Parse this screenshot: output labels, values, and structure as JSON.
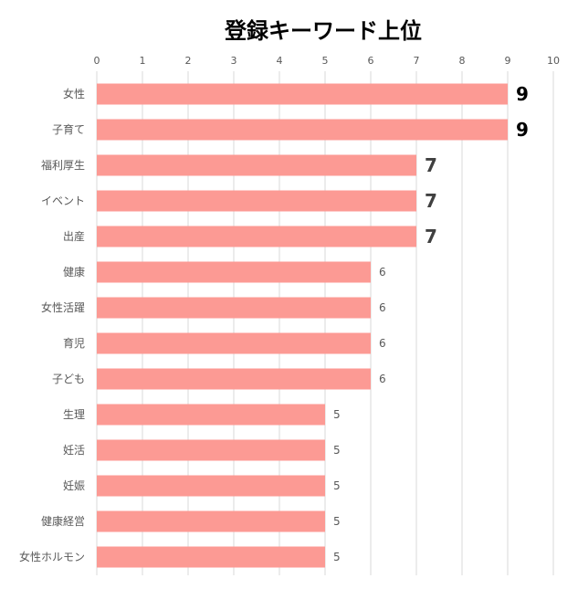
{
  "chart_data": {
    "type": "bar",
    "orientation": "horizontal",
    "title": "登録キーワード上位",
    "xlabel": "",
    "ylabel": "",
    "xlim": [
      0,
      10
    ],
    "x_ticks": [
      "0",
      "1",
      "2",
      "3",
      "4",
      "5",
      "6",
      "7",
      "8",
      "9",
      "10"
    ],
    "x_axis_position": "top",
    "grid": true,
    "bar_color": "#FC9A94",
    "categories": [
      "女性",
      "子育て",
      "福利厚生",
      "イベント",
      "出産",
      "健康",
      "女性活躍",
      "育児",
      "子ども",
      "生理",
      "妊活",
      "妊娠",
      "健康経営",
      "女性ホルモン"
    ],
    "values": [
      9,
      9,
      7,
      7,
      7,
      6,
      6,
      6,
      6,
      5,
      5,
      5,
      5,
      5
    ],
    "data_labels": [
      "9",
      "9",
      "7",
      "7",
      "7",
      "6",
      "6",
      "6",
      "6",
      "5",
      "5",
      "5",
      "5",
      "5"
    ]
  }
}
